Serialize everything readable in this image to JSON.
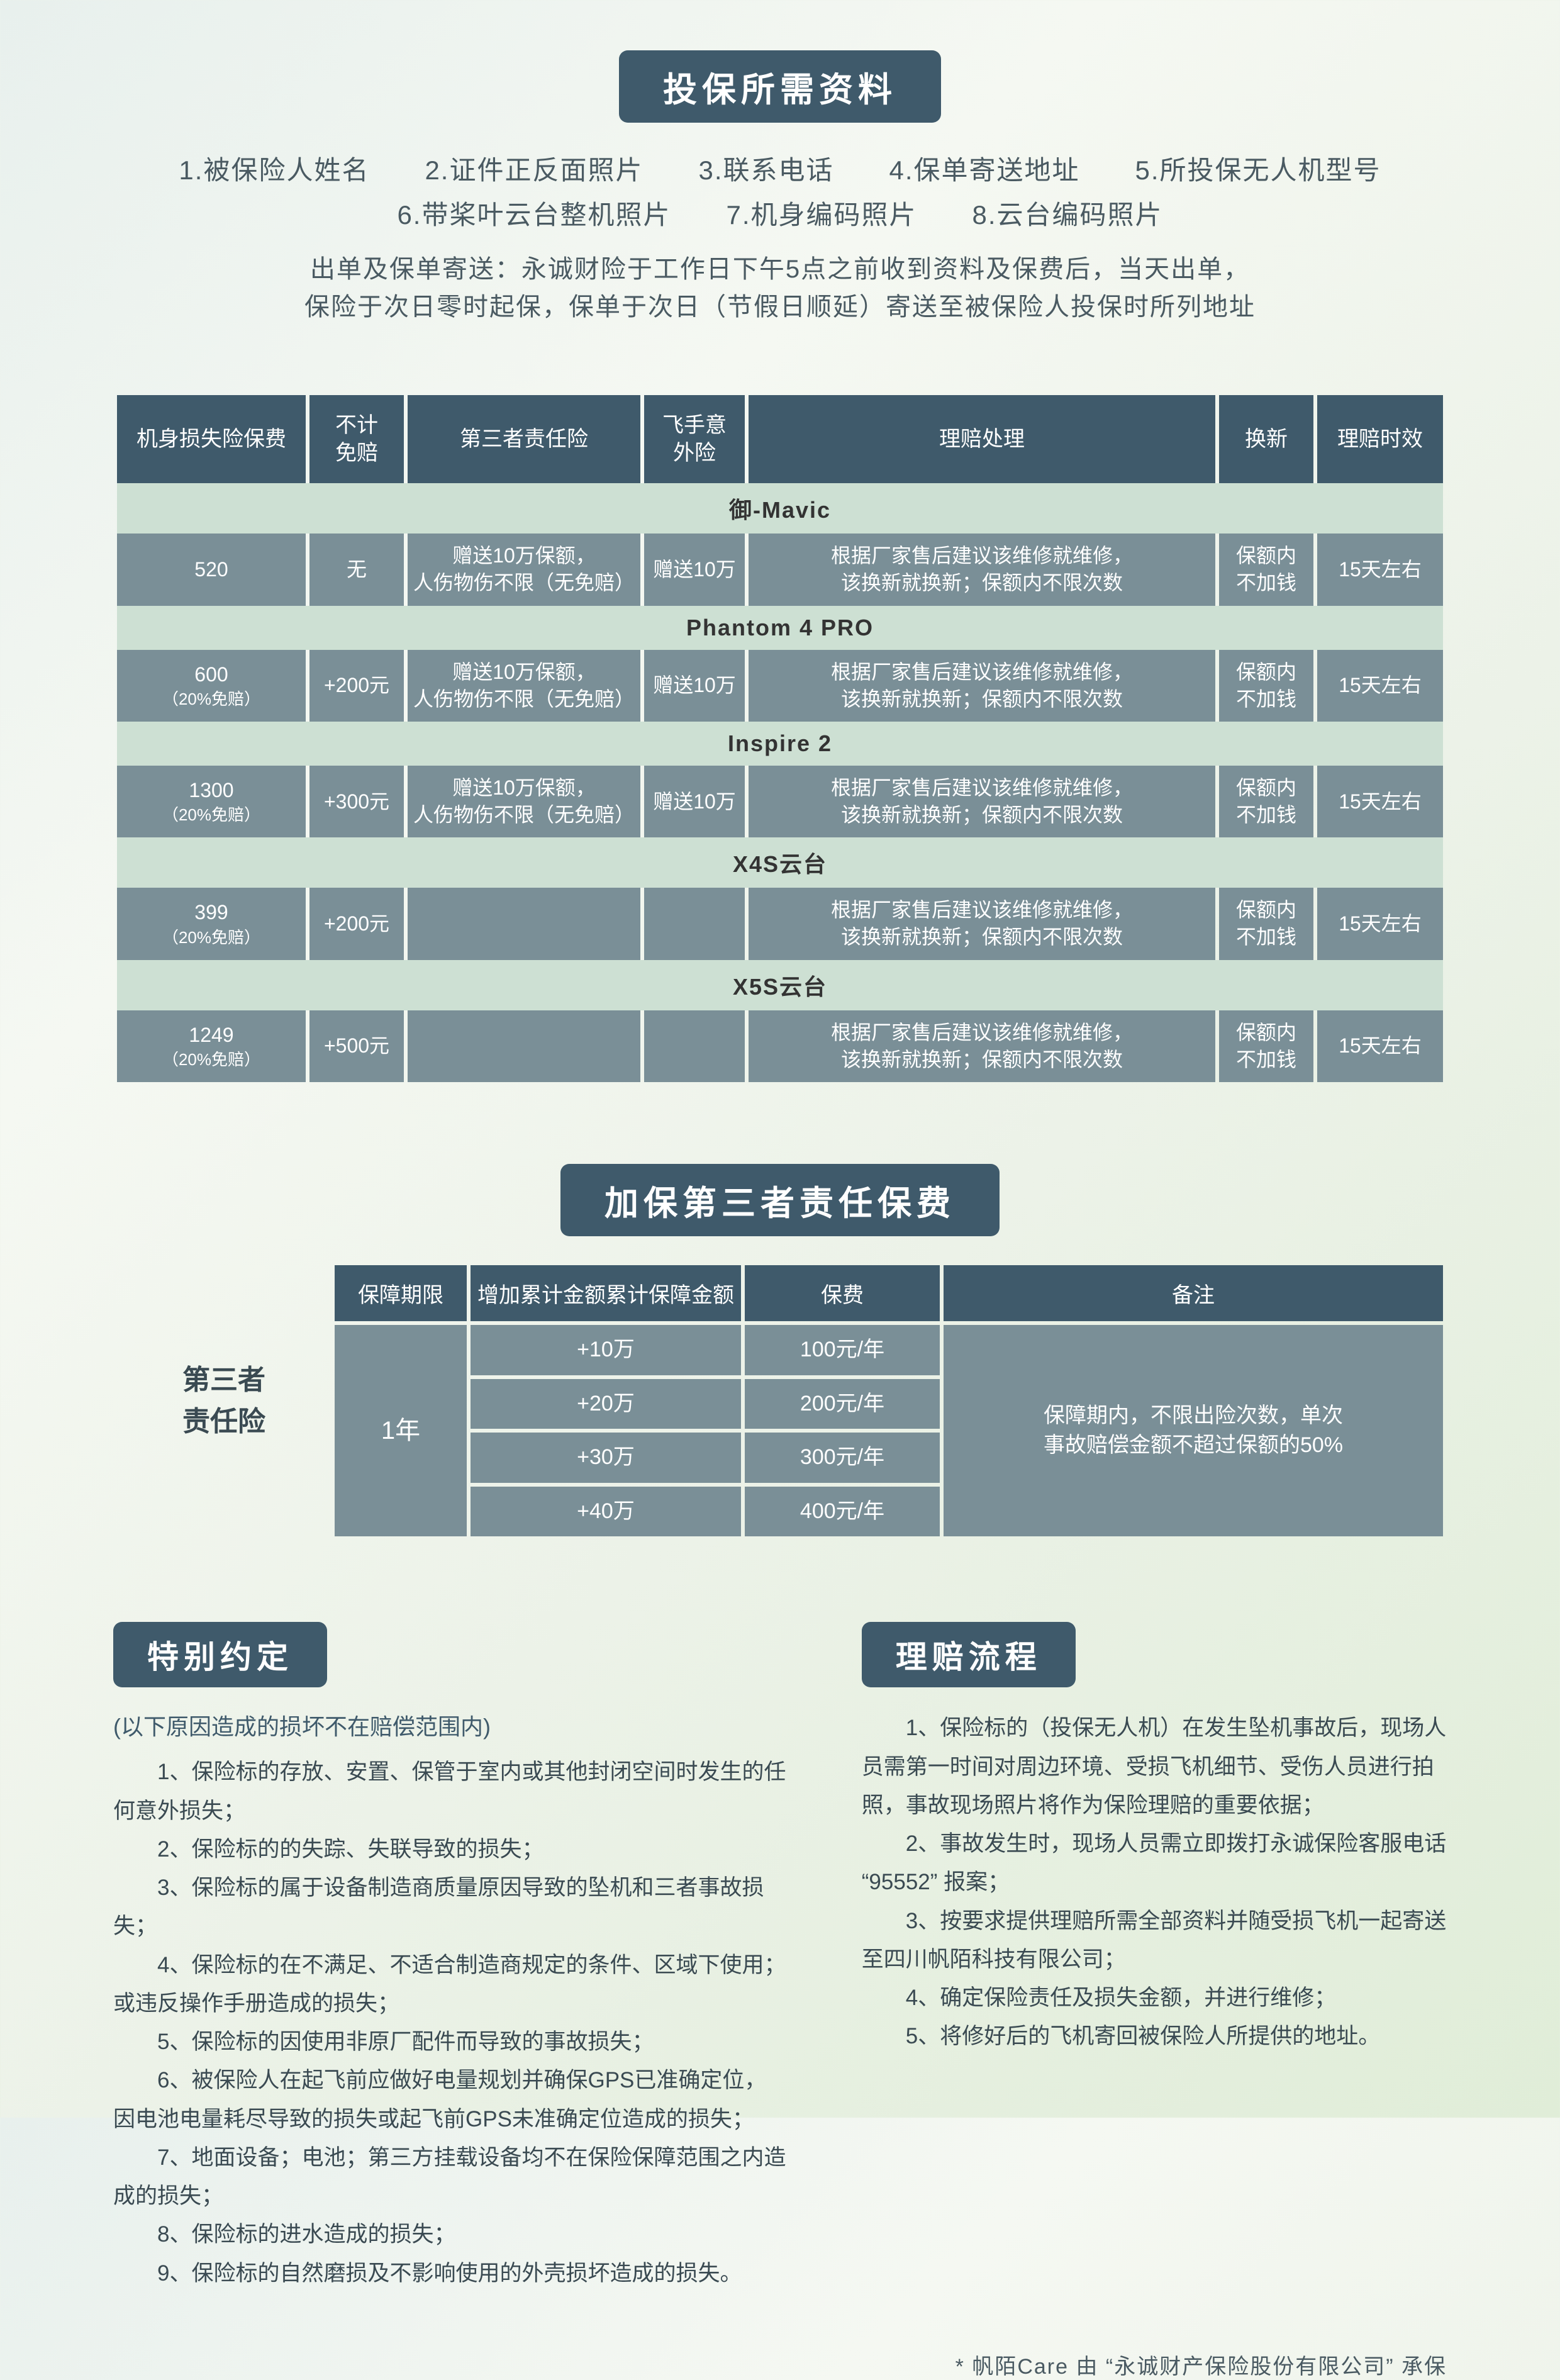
{
  "colors": {
    "header_bg": "#3f5a6b",
    "header_text": "#ffffff",
    "group_row_bg": "#cde0d3",
    "data_row_bg": "#7a8f97",
    "body_text": "#3a4a52"
  },
  "section_required": {
    "title": "投保所需资料",
    "items_line1": "1.被保险人姓名　　2.证件正反面照片　　3.联系电话　　4.保单寄送地址　　5.所投保无人机型号",
    "items_line2": "6.带桨叶云台整机照片　　7.机身编码照片　　8.云台编码照片",
    "note_line1": "出单及保单寄送：永诚财险于工作日下午5点之前收到资料及保费后，当天出单，",
    "note_line2": "保险于次日零时起保，保单于次日（节假日顺延）寄送至被保险人投保时所列地址"
  },
  "table1": {
    "headers": {
      "c1": "机身损失险保费",
      "c2": "不计\n免赔",
      "c3": "第三者责任险",
      "c4": "飞手意\n外险",
      "c5": "理赔处理",
      "c6": "换新",
      "c7": "理赔时效"
    },
    "groups": [
      {
        "name": "御-Mavic",
        "row": {
          "c1": "520",
          "c1_sub": "",
          "c2": "无",
          "c3": "赠送10万保额，\n人伤物伤不限（无免赔）",
          "c4": "赠送10万",
          "c5": "根据厂家售后建议该维修就维修，\n该换新就换新；保额内不限次数",
          "c6": "保额内\n不加钱",
          "c7": "15天左右"
        }
      },
      {
        "name": "Phantom 4 PRO",
        "row": {
          "c1": "600",
          "c1_sub": "（20%免赔）",
          "c2": "+200元",
          "c3": "赠送10万保额，\n人伤物伤不限（无免赔）",
          "c4": "赠送10万",
          "c5": "根据厂家售后建议该维修就维修，\n该换新就换新；保额内不限次数",
          "c6": "保额内\n不加钱",
          "c7": "15天左右"
        }
      },
      {
        "name": "Inspire 2",
        "row": {
          "c1": "1300",
          "c1_sub": "（20%免赔）",
          "c2": "+300元",
          "c3": "赠送10万保额，\n人伤物伤不限（无免赔）",
          "c4": "赠送10万",
          "c5": "根据厂家售后建议该维修就维修，\n该换新就换新；保额内不限次数",
          "c6": "保额内\n不加钱",
          "c7": "15天左右"
        }
      },
      {
        "name": "X4S云台",
        "row": {
          "c1": "399",
          "c1_sub": "（20%免赔）",
          "c2": "+200元",
          "c3": "",
          "c4": "",
          "c5": "根据厂家售后建议该维修就维修，\n该换新就换新；保额内不限次数",
          "c6": "保额内\n不加钱",
          "c7": "15天左右"
        }
      },
      {
        "name": "X5S云台",
        "row": {
          "c1": "1249",
          "c1_sub": "（20%免赔）",
          "c2": "+500元",
          "c3": "",
          "c4": "",
          "c5": "根据厂家售后建议该维修就维修，\n该换新就换新；保额内不限次数",
          "c6": "保额内\n不加钱",
          "c7": "15天左右"
        }
      }
    ]
  },
  "section_addon": {
    "title": "加保第三者责任保费",
    "left_label": "第三者\n责任险",
    "headers": {
      "c1": "保障期限",
      "c2": "增加累计金额累计保障金额",
      "c3": "保费",
      "c4": "备注"
    },
    "period": "1年",
    "rows": [
      {
        "amount": "+10万",
        "fee": "100元/年"
      },
      {
        "amount": "+20万",
        "fee": "200元/年"
      },
      {
        "amount": "+30万",
        "fee": "300元/年"
      },
      {
        "amount": "+40万",
        "fee": "400元/年"
      }
    ],
    "remark": "保障期内，不限出险次数，单次\n事故赔偿金额不超过保额的50%"
  },
  "section_exclusions": {
    "title": "特别约定",
    "subtitle": "(以下原因造成的损坏不在赔偿范围内)",
    "items": [
      "1、保险标的存放、安置、保管于室内或其他封闭空间时发生的任何意外损失；",
      "2、保险标的的失踪、失联导致的损失；",
      "3、保险标的属于设备制造商质量原因导致的坠机和三者事故损失；",
      "4、保险标的在不满足、不适合制造商规定的条件、区域下使用；或违反操作手册造成的损失；",
      "5、保险标的因使用非原厂配件而导致的事故损失；",
      "6、被保险人在起飞前应做好电量规划并确保GPS已准确定位，因电池电量耗尽导致的损失或起飞前GPS未准确定位造成的损失；",
      "7、地面设备；电池；第三方挂载设备均不在保险保障范围之内造成的损失；",
      "8、保险标的进水造成的损失；",
      "9、保险标的自然磨损及不影响使用的外壳损坏造成的损失。"
    ]
  },
  "section_claims": {
    "title": "理赔流程",
    "items": [
      "1、保险标的（投保无人机）在发生坠机事故后，现场人员需第一时间对周边环境、受损飞机细节、受伤人员进行拍照，事故现场照片将作为保险理赔的重要依据；",
      "2、事故发生时，现场人员需立即拨打永诚保险客服电话 “95552” 报案；",
      "3、按要求提供理赔所需全部资料并随受损飞机一起寄送至四川帆陌科技有限公司；",
      "4、确定保险责任及损失金额，并进行维修；",
      "5、将修好后的飞机寄回被保险人所提供的地址。"
    ]
  },
  "footer": "* 帆陌Care 由 “永诚财产保险股份有限公司” 承保"
}
